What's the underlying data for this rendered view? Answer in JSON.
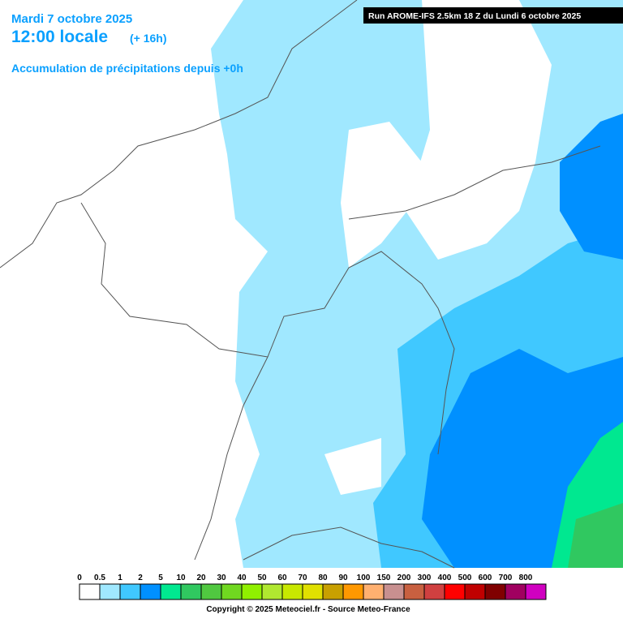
{
  "header": {
    "date": "Mardi 7 octobre 2025",
    "time": "12:00 locale",
    "lead": "(+ 16h)",
    "subtitle": "Accumulation de précipitations depuis +0h"
  },
  "run": "Run AROME-IFS 2.5km 18 Z du Lundi 6 octobre 2025",
  "legend": {
    "labels": [
      0,
      0.5,
      1,
      2,
      5,
      10,
      20,
      30,
      40,
      50,
      60,
      70,
      80,
      90,
      100,
      150,
      200,
      300,
      400,
      500,
      600,
      700,
      800
    ],
    "colors": [
      "#ffffff",
      "#a0e8ff",
      "#40c8ff",
      "#0090ff",
      "#00e890",
      "#30c860",
      "#50c840",
      "#70d820",
      "#90f000",
      "#b0e830",
      "#c8e800",
      "#e0e000",
      "#c8a000",
      "#ff9800",
      "#ffb070",
      "#c89090",
      "#c86040",
      "#d04040",
      "#ff0000",
      "#c00000",
      "#800000",
      "#a00060",
      "#d000c0"
    ]
  },
  "copyright": "Copyright © 2025 Meteociel.fr - Source Meteo-France"
}
